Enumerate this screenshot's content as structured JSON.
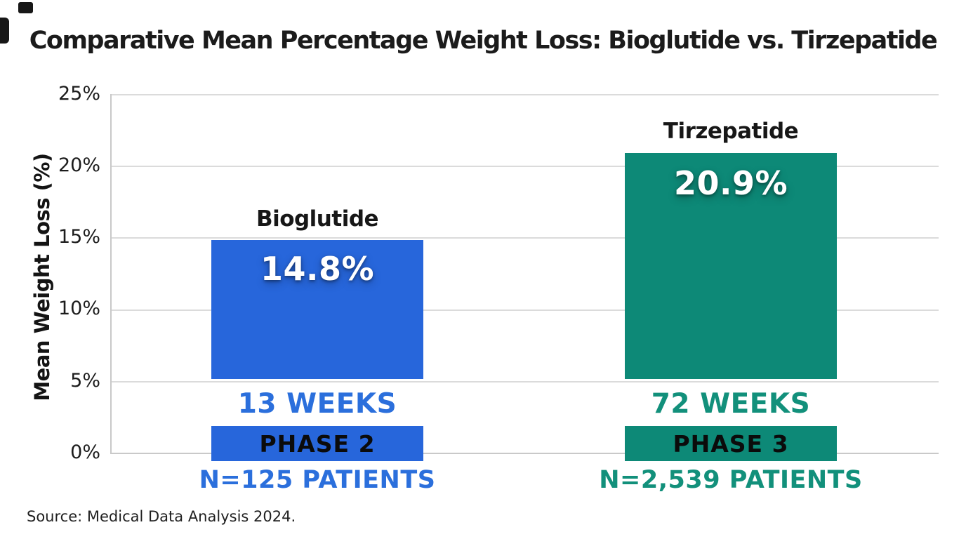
{
  "header": {
    "title": "Comparative Mean Percentage Weight Loss: Bioglutide vs. Tirzepatide"
  },
  "axis": {
    "y_label": "Mean Weight Loss (%)",
    "y_ticks": [
      "25%",
      "20%",
      "15%",
      "10%",
      "5%",
      "0%"
    ]
  },
  "footer": {
    "source": "Source: Medical Data Analysis 2024."
  },
  "chart_data": {
    "type": "bar",
    "title": "Comparative Mean Percentage Weight Loss: Bioglutide vs. Tirzepatide",
    "ylabel": "Mean Weight Loss (%)",
    "ylim": [
      0,
      25
    ],
    "y_tick_values": [
      0,
      5,
      10,
      15,
      20,
      25
    ],
    "grid": true,
    "legend": "none",
    "categories": [
      "Bioglutide",
      "Tirzepatide"
    ],
    "series": [
      {
        "name": "Bioglutide",
        "value": 14.8,
        "value_label": "14.8%",
        "duration": "13 WEEKS",
        "phase": "PHASE 2",
        "patients": "N=125 PATIENTS",
        "color": "#2766DB"
      },
      {
        "name": "Tirzepatide",
        "value": 20.9,
        "value_label": "20.9%",
        "duration": "72 WEEKS",
        "phase": "PHASE 3",
        "patients": "N=2,539 PATIENTS",
        "color": "#0D8977"
      }
    ]
  }
}
